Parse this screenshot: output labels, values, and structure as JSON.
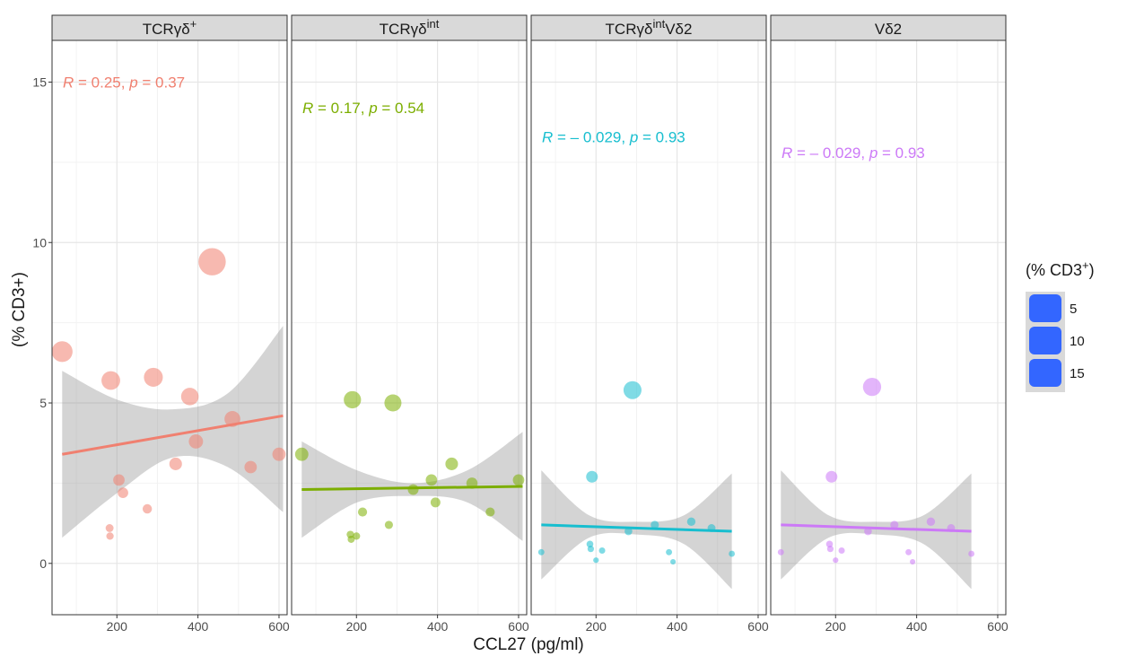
{
  "chart_data": {
    "type": "scatter",
    "xlabel": "CCL27 (pg/ml)",
    "ylabel": "(%    CD3+)",
    "xlim": [
      40,
      620
    ],
    "ylim": [
      -1.6,
      16.3
    ],
    "x_ticks": [
      200,
      400,
      600
    ],
    "y_ticks": [
      0,
      5,
      10,
      15
    ],
    "grid": true,
    "legend": {
      "title": "(%      CD3+)",
      "placement": "right",
      "labels": [
        "5",
        "10",
        "15"
      ],
      "color": "#3366ff"
    },
    "panels": [
      {
        "strip_base": "TCRγδ",
        "strip_sup": "+",
        "strip_tail": "",
        "color": "#f08070",
        "stat": {
          "r": "R",
          "r_val": " = 0.25, ",
          "p": "p",
          "p_val": " = 0.37"
        },
        "stat_y": 15.0,
        "points": [
          {
            "x": 65,
            "y": 6.6
          },
          {
            "x": 185,
            "y": 5.7
          },
          {
            "x": 290,
            "y": 5.8
          },
          {
            "x": 435,
            "y": 9.4
          },
          {
            "x": 380,
            "y": 5.2
          },
          {
            "x": 485,
            "y": 4.5
          },
          {
            "x": 395,
            "y": 3.8
          },
          {
            "x": 345,
            "y": 3.1
          },
          {
            "x": 530,
            "y": 3.0
          },
          {
            "x": 600,
            "y": 3.4
          },
          {
            "x": 205,
            "y": 2.6
          },
          {
            "x": 215,
            "y": 2.2
          },
          {
            "x": 275,
            "y": 1.7
          },
          {
            "x": 182,
            "y": 1.1
          },
          {
            "x": 183,
            "y": 0.85
          }
        ],
        "fit": {
          "x": [
            65,
            610
          ],
          "y": [
            3.4,
            4.6
          ]
        },
        "ci_upper": [
          6.0,
          5.1,
          4.8,
          5.3,
          7.4
        ],
        "ci_lower": [
          0.8,
          2.2,
          3.3,
          3.0,
          1.6
        ]
      },
      {
        "strip_base": "TCRγδ",
        "strip_sup": "int",
        "strip_tail": "",
        "color": "#7cae00",
        "stat": {
          "r": "R",
          "r_val": " = 0.17, ",
          "p": "p",
          "p_val": " = 0.54"
        },
        "stat_y": 14.2,
        "points": [
          {
            "x": 65,
            "y": 3.4
          },
          {
            "x": 190,
            "y": 5.1
          },
          {
            "x": 290,
            "y": 5.0
          },
          {
            "x": 435,
            "y": 3.1
          },
          {
            "x": 385,
            "y": 2.6
          },
          {
            "x": 485,
            "y": 2.5
          },
          {
            "x": 600,
            "y": 2.6
          },
          {
            "x": 340,
            "y": 2.3
          },
          {
            "x": 395,
            "y": 1.9
          },
          {
            "x": 530,
            "y": 1.6
          },
          {
            "x": 215,
            "y": 1.6
          },
          {
            "x": 280,
            "y": 1.2
          },
          {
            "x": 185,
            "y": 0.9
          },
          {
            "x": 200,
            "y": 0.85
          },
          {
            "x": 187,
            "y": 0.75
          }
        ],
        "fit": {
          "x": [
            65,
            610
          ],
          "y": [
            2.3,
            2.4
          ]
        },
        "ci_upper": [
          3.8,
          2.9,
          2.5,
          2.9,
          4.1
        ],
        "ci_lower": [
          0.8,
          1.9,
          2.1,
          1.9,
          0.7
        ]
      },
      {
        "strip_base": "TCRγδ",
        "strip_sup": "int",
        "strip_tail": "Vδ2",
        "color": "#17becf",
        "stat": {
          "r": "R",
          "r_val": " = – 0.029, ",
          "p": "p",
          "p_val": " = 0.93"
        },
        "stat_y": 13.3,
        "points": [
          {
            "x": 290,
            "y": 5.4
          },
          {
            "x": 190,
            "y": 2.7
          },
          {
            "x": 435,
            "y": 1.3
          },
          {
            "x": 345,
            "y": 1.2
          },
          {
            "x": 485,
            "y": 1.1
          },
          {
            "x": 280,
            "y": 1.0
          },
          {
            "x": 185,
            "y": 0.6
          },
          {
            "x": 187,
            "y": 0.45
          },
          {
            "x": 215,
            "y": 0.4
          },
          {
            "x": 65,
            "y": 0.35
          },
          {
            "x": 380,
            "y": 0.35
          },
          {
            "x": 535,
            "y": 0.3
          },
          {
            "x": 200,
            "y": 0.1
          },
          {
            "x": 390,
            "y": 0.05
          }
        ],
        "fit": {
          "x": [
            65,
            535
          ],
          "y": [
            1.2,
            1.0
          ]
        },
        "ci_upper": [
          2.9,
          1.5,
          1.3,
          1.5,
          2.8
        ],
        "ci_lower": [
          -0.5,
          0.8,
          0.9,
          0.6,
          -0.8
        ]
      },
      {
        "strip_base": "Vδ2",
        "strip_sup": "",
        "strip_tail": "",
        "color": "#cc79f7",
        "stat": {
          "r": "R",
          "r_val": " = – 0.029, ",
          "p": "p",
          "p_val": " = 0.93"
        },
        "stat_y": 12.8,
        "points": [
          {
            "x": 290,
            "y": 5.5
          },
          {
            "x": 190,
            "y": 2.7
          },
          {
            "x": 435,
            "y": 1.3
          },
          {
            "x": 345,
            "y": 1.2
          },
          {
            "x": 485,
            "y": 1.1
          },
          {
            "x": 280,
            "y": 1.0
          },
          {
            "x": 185,
            "y": 0.6
          },
          {
            "x": 187,
            "y": 0.45
          },
          {
            "x": 215,
            "y": 0.4
          },
          {
            "x": 65,
            "y": 0.35
          },
          {
            "x": 380,
            "y": 0.35
          },
          {
            "x": 535,
            "y": 0.3
          },
          {
            "x": 200,
            "y": 0.1
          },
          {
            "x": 390,
            "y": 0.05
          }
        ],
        "fit": {
          "x": [
            65,
            535
          ],
          "y": [
            1.2,
            1.0
          ]
        },
        "ci_upper": [
          2.9,
          1.5,
          1.3,
          1.5,
          2.8
        ],
        "ci_lower": [
          -0.5,
          0.8,
          0.9,
          0.6,
          -0.8
        ]
      }
    ]
  }
}
